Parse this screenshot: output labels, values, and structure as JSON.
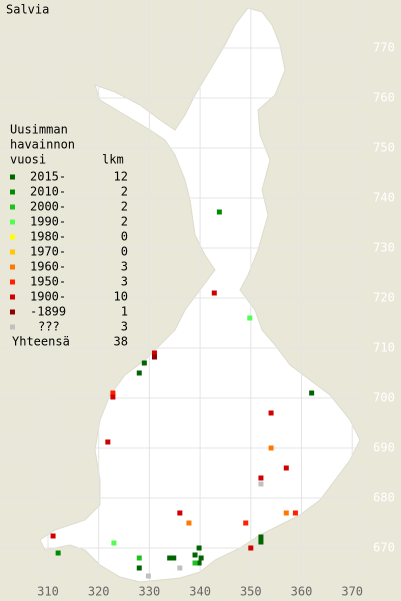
{
  "title": "Salvia",
  "legend": {
    "heading": [
      "Uusimman",
      "havainnon",
      "vuosi"
    ],
    "count_heading": "lkm",
    "items": [
      {
        "label": "2015-",
        "count": 12,
        "color": "#006400",
        "points": [
          [
            329,
            707
          ],
          [
            328,
            705
          ],
          [
            362,
            701
          ],
          [
            352,
            672.2
          ],
          [
            352,
            671.2
          ],
          [
            339.8,
            670
          ],
          [
            334,
            668
          ],
          [
            334.8,
            668
          ],
          [
            339.8,
            667
          ],
          [
            328,
            666
          ],
          [
            339,
            668.6
          ],
          [
            340.2,
            668
          ]
        ]
      },
      {
        "label": "2010-",
        "count": 2,
        "color": "#008c00",
        "points": [
          [
            343.8,
            737.2
          ],
          [
            312,
            669
          ]
        ]
      },
      {
        "label": "2000-",
        "count": 2,
        "color": "#20c020",
        "points": [
          [
            339,
            667
          ],
          [
            328,
            668
          ]
        ]
      },
      {
        "label": "1990-",
        "count": 2,
        "color": "#50ff50",
        "points": [
          [
            349.8,
            716
          ],
          [
            323,
            671
          ]
        ]
      },
      {
        "label": "1980-",
        "count": 0,
        "color": "#ffff00",
        "points": []
      },
      {
        "label": "1970-",
        "count": 0,
        "color": "#ffc800",
        "points": []
      },
      {
        "label": "1960-",
        "count": 3,
        "color": "#ff7800",
        "points": [
          [
            354,
            690
          ],
          [
            337.8,
            675
          ],
          [
            357,
            677
          ]
        ]
      },
      {
        "label": "1950-",
        "count": 3,
        "color": "#ff2000",
        "points": [
          [
            322.8,
            701
          ],
          [
            358.8,
            677
          ],
          [
            349,
            675
          ]
        ]
      },
      {
        "label": "1900-",
        "count": 10,
        "color": "#d00000",
        "points": [
          [
            342.8,
            721
          ],
          [
            331,
            709
          ],
          [
            322.8,
            700.2
          ],
          [
            354,
            697
          ],
          [
            321.8,
            691.2
          ],
          [
            357,
            686
          ],
          [
            352,
            684
          ],
          [
            336,
            677
          ],
          [
            350,
            670
          ],
          [
            311,
            672.4
          ]
        ]
      },
      {
        "label": "-1899",
        "count": 1,
        "color": "#8b0000",
        "points": [
          [
            331,
            708.2
          ]
        ]
      },
      {
        "label": "???",
        "count": 3,
        "color": "#c0c0c0",
        "points": [
          [
            352,
            682.8
          ],
          [
            336,
            666
          ],
          [
            329.8,
            664.4
          ]
        ]
      }
    ],
    "total_label": "Yhteensä",
    "total": 38
  },
  "xticks": [
    310,
    320,
    330,
    340,
    350,
    360,
    370
  ],
  "yticks": [
    770,
    760,
    750,
    740,
    730,
    720,
    710,
    700,
    690,
    680,
    670
  ]
}
